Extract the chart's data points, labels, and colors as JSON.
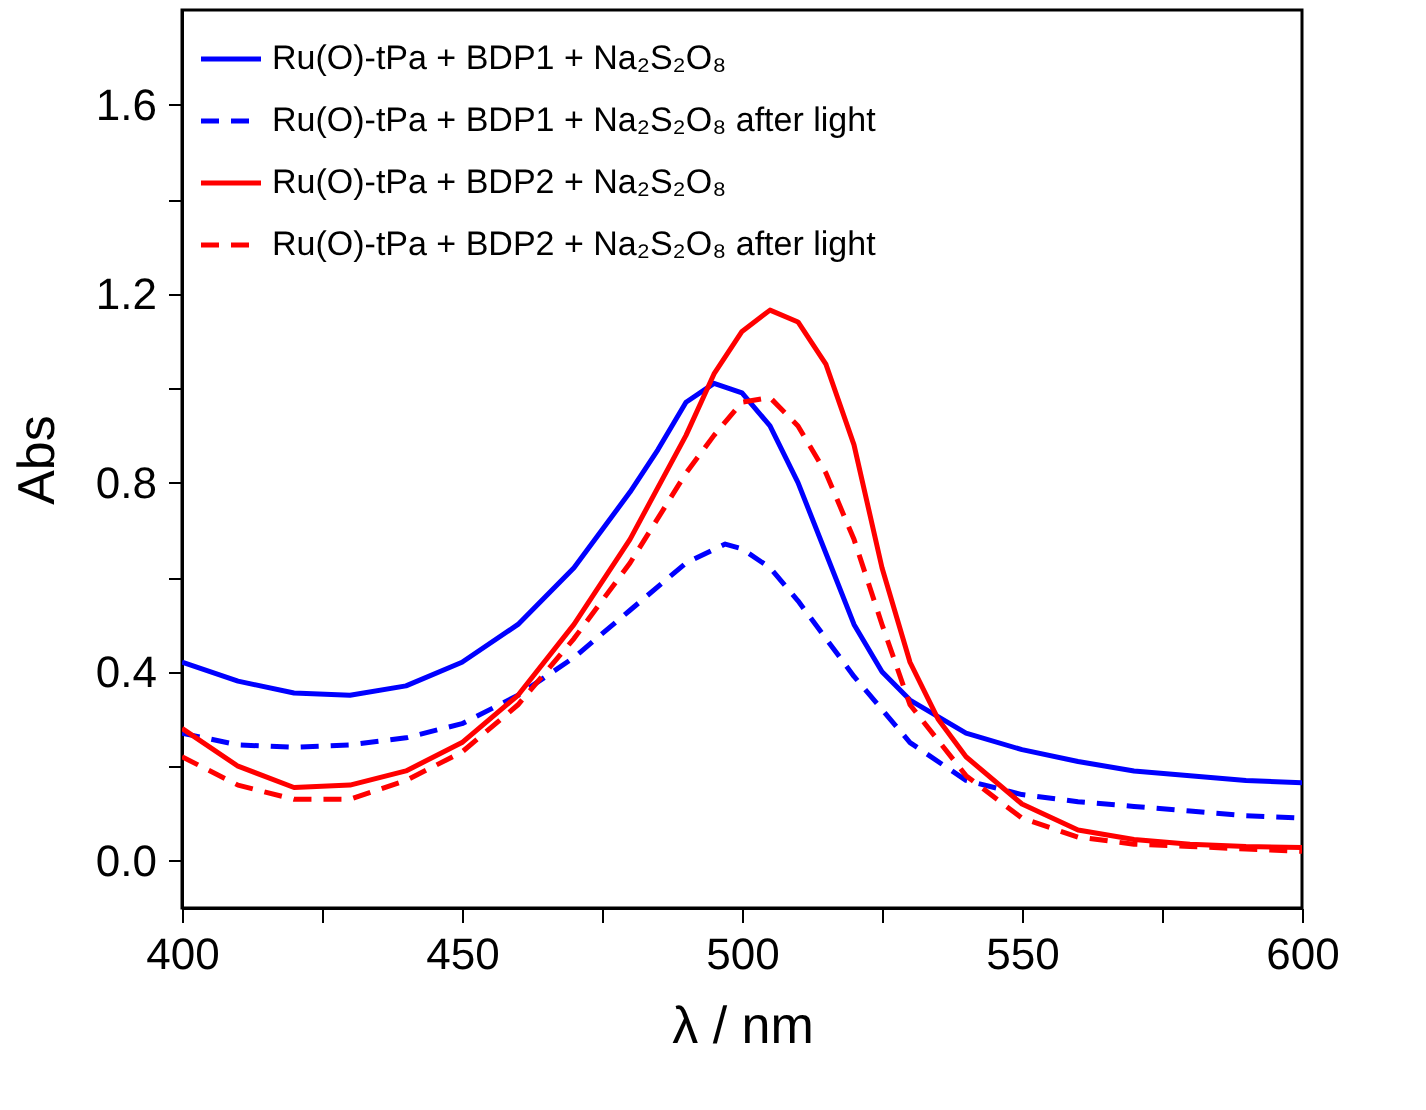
{
  "chart_data": {
    "type": "line",
    "xlabel": "λ / nm",
    "ylabel": "Abs",
    "xlim": [
      400,
      600
    ],
    "ylim": [
      -0.1,
      1.8
    ],
    "xticks": [
      400,
      {
        "value": 425,
        "label": null
      },
      450,
      {
        "value": 475,
        "label": null
      },
      500,
      {
        "value": 525,
        "label": null
      },
      550,
      {
        "value": 575,
        "label": null
      },
      600
    ],
    "yticks": [
      {
        "value": 0,
        "label": "0.0"
      },
      {
        "value": 0.2,
        "label": null
      },
      0.4,
      {
        "value": 0.6,
        "label": null
      },
      0.8,
      {
        "value": 1.0,
        "label": null
      },
      1.2,
      {
        "value": 1.4,
        "label": null
      },
      1.6
    ],
    "grid": false,
    "legend": "top left",
    "marker": "none",
    "series": [
      {
        "name": "Ru(O)-tPa + BDP1 + Na₂S₂O₈",
        "color": "#0000ff",
        "line_style": "solid",
        "x": [
          400,
          410,
          420,
          430,
          440,
          450,
          460,
          470,
          480,
          485,
          490,
          495,
          500,
          505,
          510,
          515,
          520,
          525,
          530,
          540,
          550,
          560,
          570,
          580,
          590,
          600
        ],
        "values": [
          0.42,
          0.38,
          0.355,
          0.35,
          0.37,
          0.42,
          0.5,
          0.62,
          0.78,
          0.87,
          0.97,
          1.01,
          0.99,
          0.92,
          0.8,
          0.65,
          0.5,
          0.4,
          0.34,
          0.27,
          0.235,
          0.21,
          0.19,
          0.18,
          0.17,
          0.165
        ]
      },
      {
        "name": "Ru(O)-tPa + BDP1 + Na₂S₂O₈ after light",
        "color": "#0000ff",
        "line_style": "dashed",
        "x": [
          400,
          410,
          420,
          430,
          440,
          450,
          460,
          470,
          480,
          490,
          497,
          500,
          505,
          510,
          520,
          530,
          540,
          550,
          560,
          570,
          580,
          590,
          600
        ],
        "values": [
          0.27,
          0.245,
          0.24,
          0.245,
          0.26,
          0.29,
          0.35,
          0.43,
          0.53,
          0.63,
          0.67,
          0.66,
          0.62,
          0.55,
          0.39,
          0.25,
          0.17,
          0.14,
          0.125,
          0.115,
          0.105,
          0.095,
          0.09
        ]
      },
      {
        "name": "Ru(O)-tPa + BDP2 + Na₂S₂O₈",
        "color": "#ff0000",
        "line_style": "solid",
        "x": [
          400,
          410,
          420,
          430,
          440,
          450,
          460,
          470,
          480,
          490,
          495,
          500,
          505,
          510,
          515,
          520,
          525,
          530,
          535,
          540,
          550,
          560,
          570,
          580,
          590,
          600
        ],
        "values": [
          0.28,
          0.2,
          0.155,
          0.16,
          0.19,
          0.25,
          0.35,
          0.5,
          0.68,
          0.9,
          1.03,
          1.12,
          1.165,
          1.14,
          1.05,
          0.88,
          0.62,
          0.42,
          0.3,
          0.22,
          0.12,
          0.065,
          0.045,
          0.035,
          0.03,
          0.028
        ]
      },
      {
        "name": "Ru(O)-tPa + BDP2 + Na₂S₂O₈ after light",
        "color": "#ff0000",
        "line_style": "dashed",
        "x": [
          400,
          410,
          420,
          430,
          440,
          450,
          460,
          470,
          480,
          490,
          495,
          500,
          505,
          510,
          515,
          520,
          525,
          530,
          540,
          550,
          560,
          570,
          580,
          590,
          600
        ],
        "values": [
          0.22,
          0.16,
          0.13,
          0.13,
          0.17,
          0.23,
          0.33,
          0.47,
          0.63,
          0.82,
          0.9,
          0.97,
          0.98,
          0.92,
          0.82,
          0.68,
          0.5,
          0.33,
          0.18,
          0.09,
          0.05,
          0.035,
          0.03,
          0.025,
          0.02
        ]
      }
    ]
  }
}
